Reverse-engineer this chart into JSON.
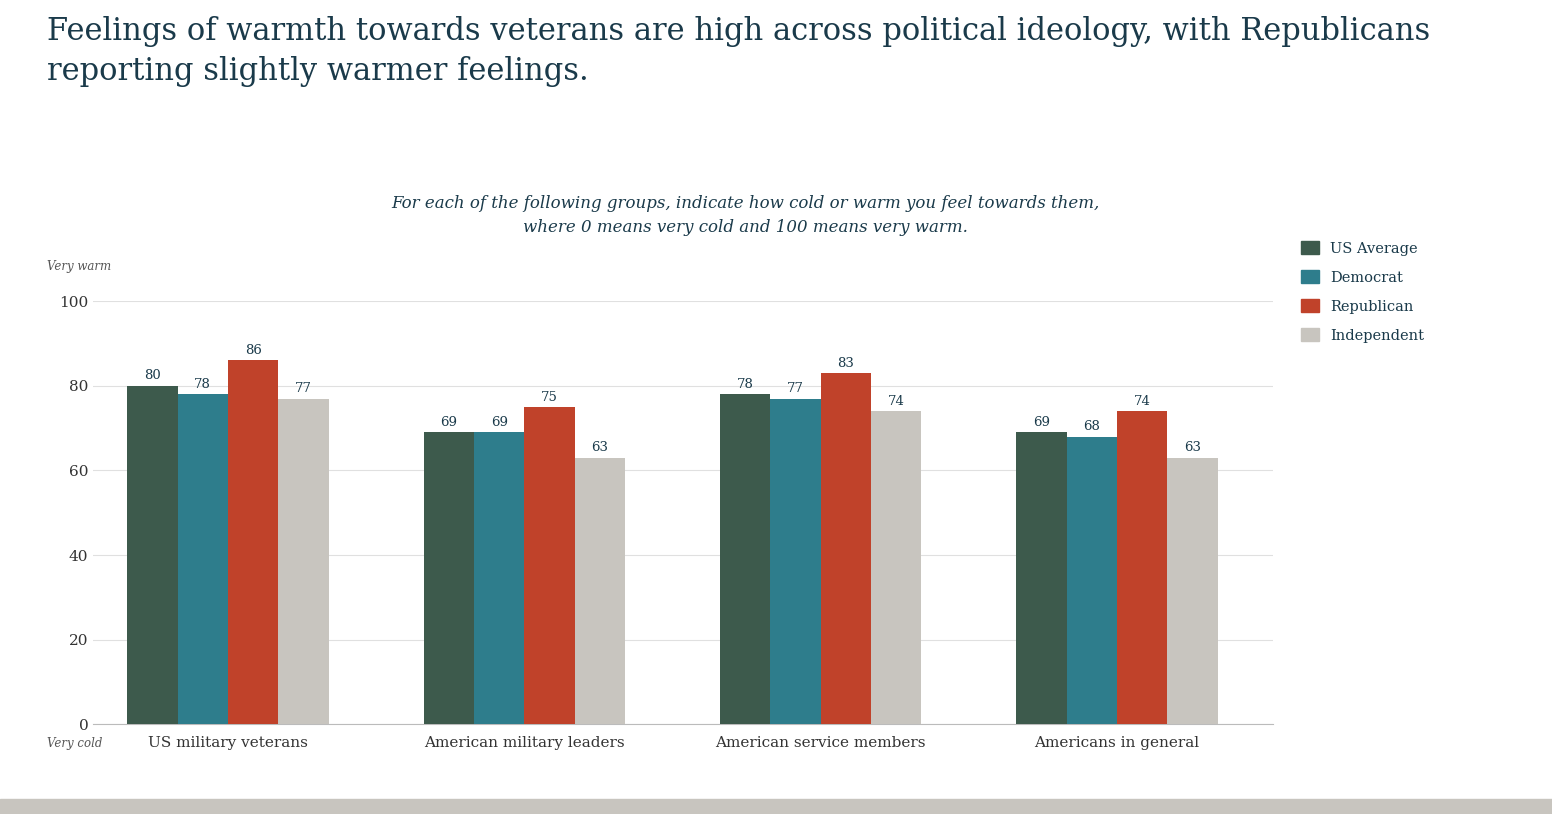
{
  "title": "Feelings of warmth towards veterans are high across political ideology, with Republicans\nreporting slightly warmer feelings.",
  "subtitle": "For each of the following groups, indicate how cold or warm you feel towards them,\nwhere 0 means very cold and 100 means very warm.",
  "categories": [
    "US military veterans",
    "American military leaders",
    "American service members",
    "Americans in general"
  ],
  "series": {
    "US Average": [
      80,
      69,
      78,
      69
    ],
    "Democrat": [
      78,
      69,
      77,
      68
    ],
    "Republican": [
      86,
      75,
      83,
      74
    ],
    "Independent": [
      77,
      63,
      74,
      63
    ]
  },
  "colors": {
    "US Average": "#3d5a4c",
    "Democrat": "#2e7d8c",
    "Republican": "#c0422a",
    "Independent": "#c8c5bf"
  },
  "ylim": [
    0,
    100
  ],
  "yticks": [
    0,
    20,
    40,
    60,
    80,
    100
  ],
  "ylabel_very_warm": "Very warm",
  "ylabel_very_cold": "Very cold",
  "background_color": "#ffffff",
  "title_color": "#1a3a4a",
  "subtitle_color": "#1a3a4a",
  "axis_color": "#333333",
  "bar_label_fontsize": 9.5,
  "title_fontsize": 22,
  "subtitle_fontsize": 12,
  "legend_labels": [
    "US Average",
    "Democrat",
    "Republican",
    "Independent"
  ],
  "bottom_bar_color": "#c8c5bf"
}
